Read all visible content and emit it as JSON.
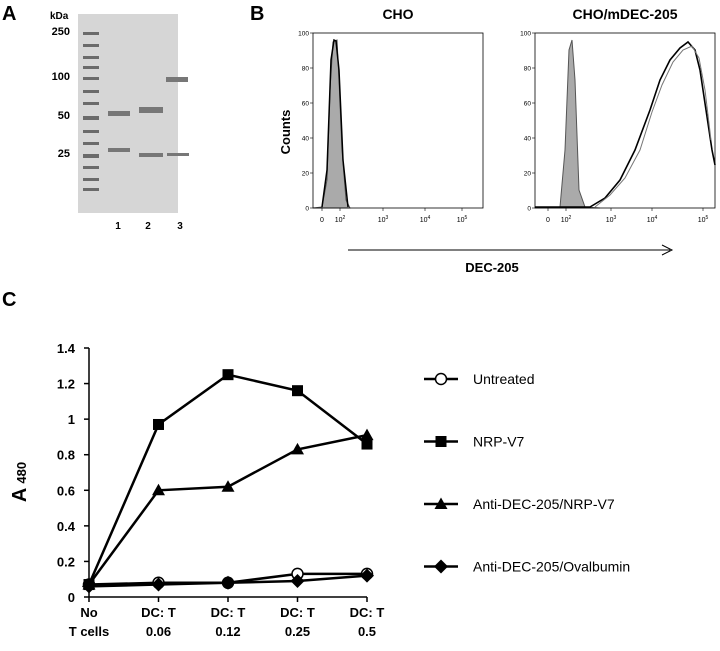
{
  "panel_a": {
    "label": "A",
    "unit": "kDa",
    "markers": [
      "250",
      "100",
      "50",
      "25"
    ],
    "lanes": [
      "1",
      "2",
      "3"
    ]
  },
  "panel_b": {
    "label": "B",
    "y_label": "Counts",
    "x_label": "DEC-205",
    "ylim": [
      0,
      100
    ],
    "yticks": [
      0,
      20,
      40,
      60,
      80,
      100
    ],
    "xticks": [
      {
        "base": "0"
      },
      {
        "base": "10",
        "exponent": "2"
      },
      {
        "base": "10",
        "exponent": "3"
      },
      {
        "base": "10",
        "exponent": "4"
      },
      {
        "base": "10",
        "exponent": "5"
      }
    ],
    "histograms": [
      {
        "title": "CHO"
      },
      {
        "title": "CHO/mDEC-205"
      }
    ]
  },
  "panel_c": {
    "label": "C"
  },
  "chart_data": {
    "type": "line",
    "y_label": "A",
    "y_label_sub": "480",
    "categories": [
      [
        "No",
        "T cells"
      ],
      [
        "DC: T",
        "0.06"
      ],
      [
        "DC: T",
        "0.12"
      ],
      [
        "DC: T",
        "0.25"
      ],
      [
        "DC: T",
        "0.5"
      ]
    ],
    "ylim": [
      0,
      1.4
    ],
    "yticks": [
      0,
      0.2,
      0.4,
      0.6,
      0.8,
      1,
      1.2,
      1.4
    ],
    "series": [
      {
        "name": "Untreated",
        "color": "#000000",
        "marker": "circle-open",
        "values": [
          0.07,
          0.08,
          0.08,
          0.13,
          0.13
        ]
      },
      {
        "name": "NRP-V7",
        "color": "#000000",
        "marker": "square",
        "values": [
          0.07,
          0.97,
          1.25,
          1.16,
          0.86
        ]
      },
      {
        "name": "Anti-DEC-205/NRP-V7",
        "color": "#000000",
        "marker": "triangle",
        "values": [
          0.07,
          0.6,
          0.62,
          0.83,
          0.91
        ]
      },
      {
        "name": "Anti-DEC-205/Ovalbumin",
        "color": "#000000",
        "marker": "diamond",
        "values": [
          0.06,
          0.07,
          0.08,
          0.09,
          0.12
        ]
      }
    ]
  }
}
